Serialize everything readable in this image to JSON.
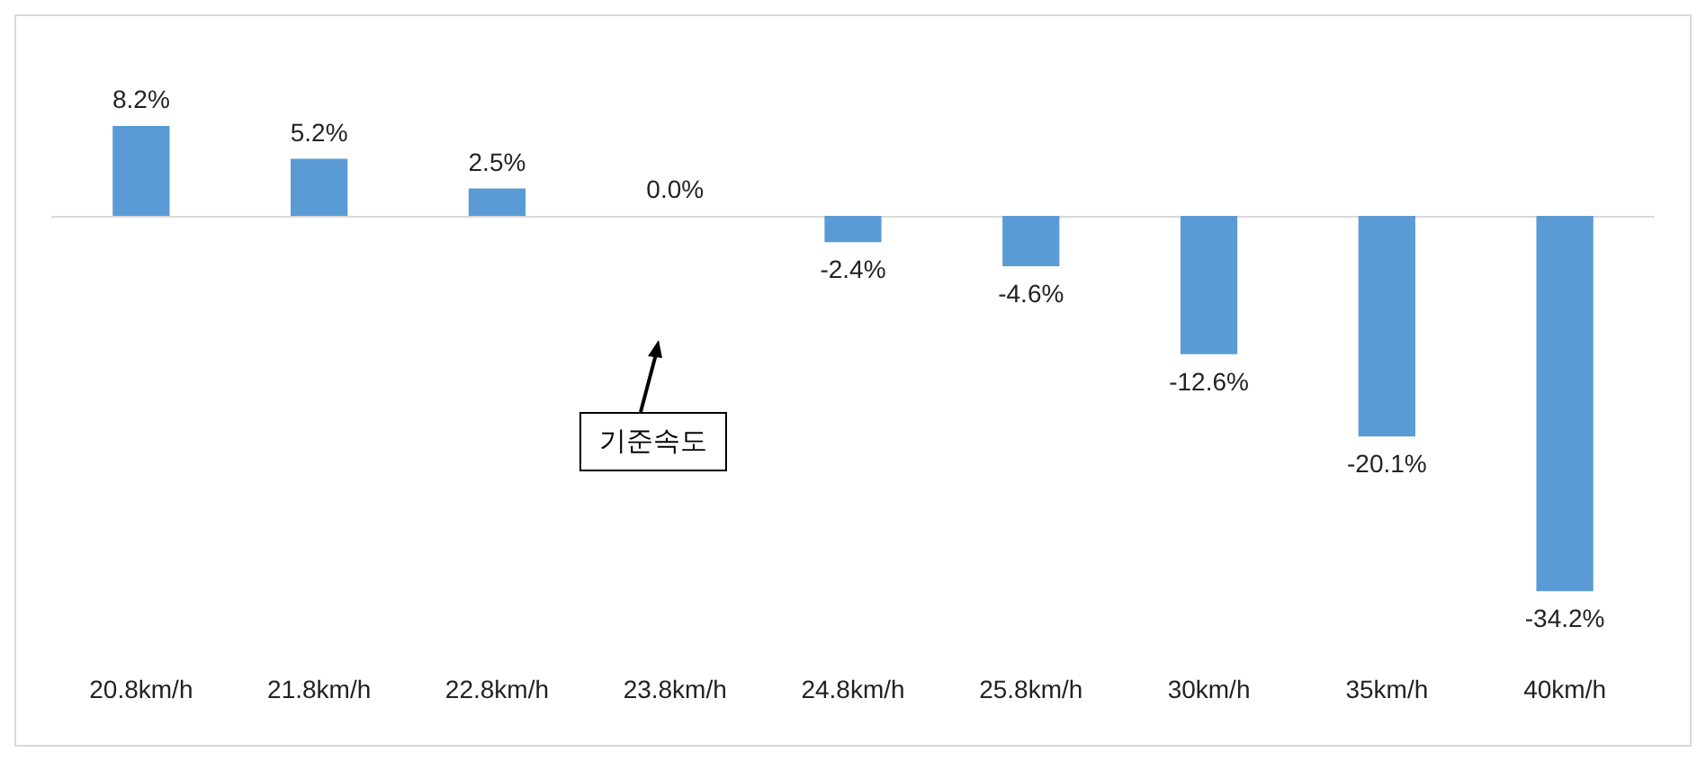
{
  "chart_data": {
    "type": "bar",
    "categories": [
      "20.8km/h",
      "21.8km/h",
      "22.8km/h",
      "23.8km/h",
      "24.8km/h",
      "25.8km/h",
      "30km/h",
      "35km/h",
      "40km/h"
    ],
    "values": [
      8.2,
      5.2,
      2.5,
      0.0,
      -2.4,
      -4.6,
      -12.6,
      -20.1,
      -34.2
    ],
    "value_labels": [
      "8.2%",
      "5.2%",
      "2.5%",
      "0.0%",
      "-2.4%",
      "-4.6%",
      "-12.6%",
      "-20.1%",
      "-34.2%"
    ],
    "color": "#5b9bd5",
    "grid": false,
    "annotations": [
      "기준속도"
    ]
  }
}
